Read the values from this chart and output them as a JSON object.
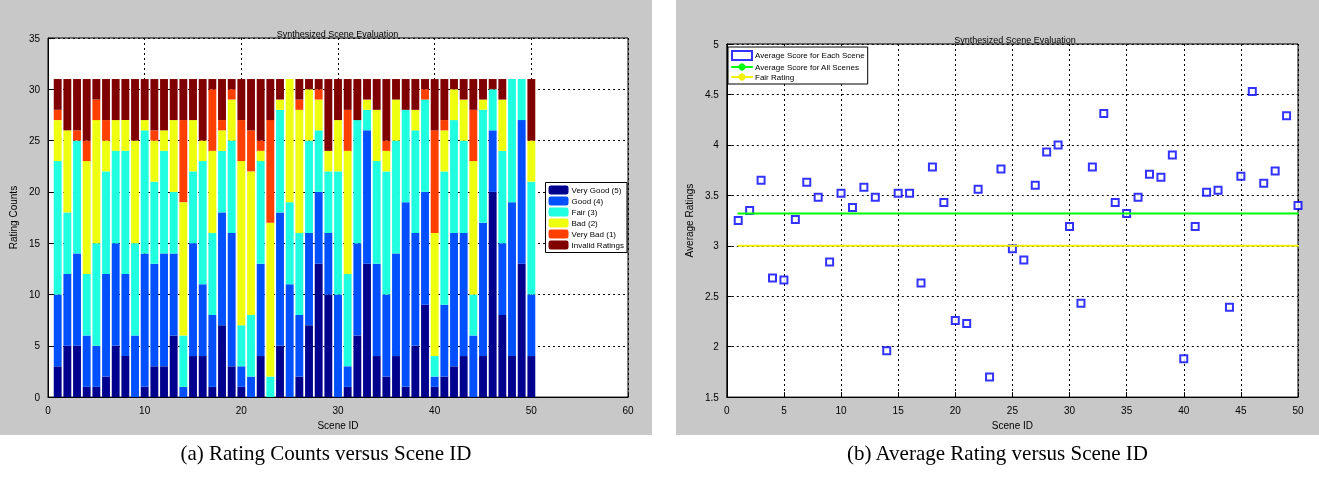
{
  "chart_data": [
    {
      "type": "bar",
      "title": "Synthesized Scene Evaluation",
      "xlabel": "Scene ID",
      "ylabel": "Rating Counts",
      "annotations": [
        "(a) Rating Counts versus Scene ID"
      ],
      "stacked": true,
      "legend": "right",
      "grid": true,
      "xlim": [
        0,
        60
      ],
      "xticks": [
        0,
        10,
        20,
        30,
        40,
        50,
        60
      ],
      "ylim": [
        0,
        35
      ],
      "yticks": [
        0,
        5,
        10,
        15,
        20,
        25,
        30,
        35
      ],
      "x": [
        1,
        2,
        3,
        4,
        5,
        6,
        7,
        8,
        9,
        10,
        11,
        12,
        13,
        14,
        15,
        16,
        17,
        18,
        19,
        20,
        21,
        22,
        23,
        24,
        25,
        26,
        27,
        28,
        29,
        30,
        31,
        32,
        33,
        34,
        35,
        36,
        37,
        38,
        39,
        40,
        41,
        42,
        43,
        44,
        45,
        46,
        47,
        48,
        49,
        50
      ],
      "series": [
        {
          "name": "Very Good (5)",
          "color": "#00008f",
          "values": [
            3,
            5,
            5,
            1,
            1,
            2,
            5,
            4,
            0,
            1,
            3,
            3,
            6,
            0,
            4,
            4,
            1,
            7,
            3,
            1,
            0,
            4,
            0,
            5,
            0,
            2,
            7,
            13,
            10,
            0,
            1,
            6,
            13,
            4,
            2,
            4,
            1,
            5,
            9,
            1,
            2,
            3,
            4,
            0,
            4,
            20,
            8,
            4,
            13,
            4
          ]
        },
        {
          "name": "Good (4)",
          "color": "#0050ff",
          "values": [
            7,
            7,
            9,
            5,
            4,
            10,
            10,
            8,
            6,
            13,
            10,
            11,
            8,
            1,
            11,
            7,
            7,
            11,
            13,
            2,
            2,
            9,
            0,
            13,
            11,
            6,
            9,
            7,
            6,
            10,
            2,
            9,
            13,
            9,
            8,
            10,
            18,
            11,
            11,
            1,
            7,
            13,
            12,
            6,
            13,
            6,
            7,
            15,
            14,
            6
          ]
        },
        {
          "name": "Fair (3)",
          "color": "#20ffdf",
          "values": [
            13,
            6,
            11,
            6,
            10,
            10,
            9,
            12,
            9,
            12,
            8,
            10,
            6,
            5,
            7,
            12,
            8,
            6,
            9,
            4,
            6,
            10,
            2,
            10,
            8,
            8,
            9,
            6,
            6,
            12,
            9,
            12,
            2,
            10,
            12,
            11,
            9,
            10,
            9,
            2,
            13,
            11,
            9,
            4,
            11,
            4,
            9,
            12,
            4,
            11
          ]
        },
        {
          "name": "Bad (2)",
          "color": "#efff10",
          "values": [
            4,
            8,
            0,
            11,
            12,
            3,
            3,
            3,
            10,
            1,
            4,
            2,
            7,
            13,
            5,
            2,
            8,
            2,
            4,
            16,
            14,
            1,
            15,
            1,
            12,
            12,
            5,
            3,
            2,
            5,
            12,
            0,
            1,
            5,
            2,
            4,
            0,
            2,
            0,
            12,
            4,
            3,
            4,
            13,
            1,
            0,
            5,
            0,
            0,
            4
          ]
        },
        {
          "name": "Very Bad (1)",
          "color": "#ff4000",
          "values": [
            1,
            0,
            1,
            2,
            2,
            2,
            0,
            0,
            0,
            0,
            1,
            0,
            0,
            8,
            0,
            0,
            6,
            1,
            1,
            4,
            4,
            1,
            10,
            0,
            0,
            1,
            0,
            1,
            0,
            0,
            4,
            0,
            0,
            0,
            1,
            0,
            0,
            0,
            1,
            10,
            1,
            0,
            0,
            5,
            0,
            0,
            0,
            0,
            0,
            0
          ]
        },
        {
          "name": "Invalid Ratings",
          "color": "#800000",
          "values": [
            3,
            5,
            5,
            6,
            2,
            4,
            4,
            4,
            6,
            4,
            5,
            5,
            4,
            4,
            4,
            6,
            1,
            4,
            1,
            4,
            5,
            6,
            4,
            2,
            0,
            2,
            1,
            1,
            7,
            4,
            3,
            4,
            2,
            3,
            6,
            2,
            3,
            3,
            1,
            5,
            4,
            1,
            2,
            3,
            2,
            1,
            2,
            0,
            0,
            6
          ]
        }
      ]
    },
    {
      "type": "scatter",
      "title": "Synthesized Scene Evaluation",
      "xlabel": "Scene ID",
      "ylabel": "Average Ratings",
      "annotations": [
        "(b)  Average Rating versus Scene ID"
      ],
      "legend": "top left",
      "grid": true,
      "xlim": [
        0,
        50
      ],
      "xticks": [
        0,
        5,
        10,
        15,
        20,
        25,
        30,
        35,
        40,
        45,
        50
      ],
      "ylim": [
        1.5,
        5
      ],
      "yticks": [
        1.5,
        2,
        2.5,
        3,
        3.5,
        4,
        4.5,
        5
      ],
      "series": [
        {
          "name": "Average Score for Each Scene",
          "type": "scatter",
          "marker": "square",
          "color": "#0000ff",
          "x": [
            1,
            2,
            3,
            4,
            5,
            6,
            7,
            8,
            9,
            10,
            11,
            12,
            13,
            14,
            15,
            16,
            17,
            18,
            19,
            20,
            21,
            22,
            23,
            24,
            25,
            26,
            27,
            28,
            29,
            30,
            31,
            32,
            33,
            34,
            35,
            36,
            37,
            38,
            39,
            40,
            41,
            42,
            43,
            44,
            45,
            46,
            47,
            48,
            49,
            50
          ],
          "values": [
            3.25,
            3.35,
            3.65,
            2.68,
            2.66,
            3.26,
            3.63,
            3.48,
            2.84,
            3.52,
            3.38,
            3.58,
            3.48,
            1.96,
            3.52,
            3.52,
            2.63,
            3.78,
            3.43,
            2.26,
            2.23,
            3.56,
            1.7,
            3.76,
            2.97,
            2.86,
            3.6,
            3.93,
            4.0,
            3.19,
            2.43,
            3.78,
            4.31,
            3.43,
            3.32,
            3.48,
            3.71,
            3.68,
            3.9,
            1.88,
            3.19,
            3.53,
            3.55,
            2.39,
            3.69,
            4.53,
            3.62,
            3.74,
            4.29,
            3.4
          ]
        },
        {
          "name": "Average Score for All Scenes",
          "type": "line",
          "marker": "none",
          "color": "#00ff00",
          "x": [
            1,
            50
          ],
          "values": [
            3.32,
            3.32
          ]
        },
        {
          "name": "Fair Rating",
          "type": "line",
          "marker": "none",
          "color": "#f0f000",
          "x": [
            1,
            50
          ],
          "values": [
            3,
            3
          ]
        }
      ]
    }
  ]
}
